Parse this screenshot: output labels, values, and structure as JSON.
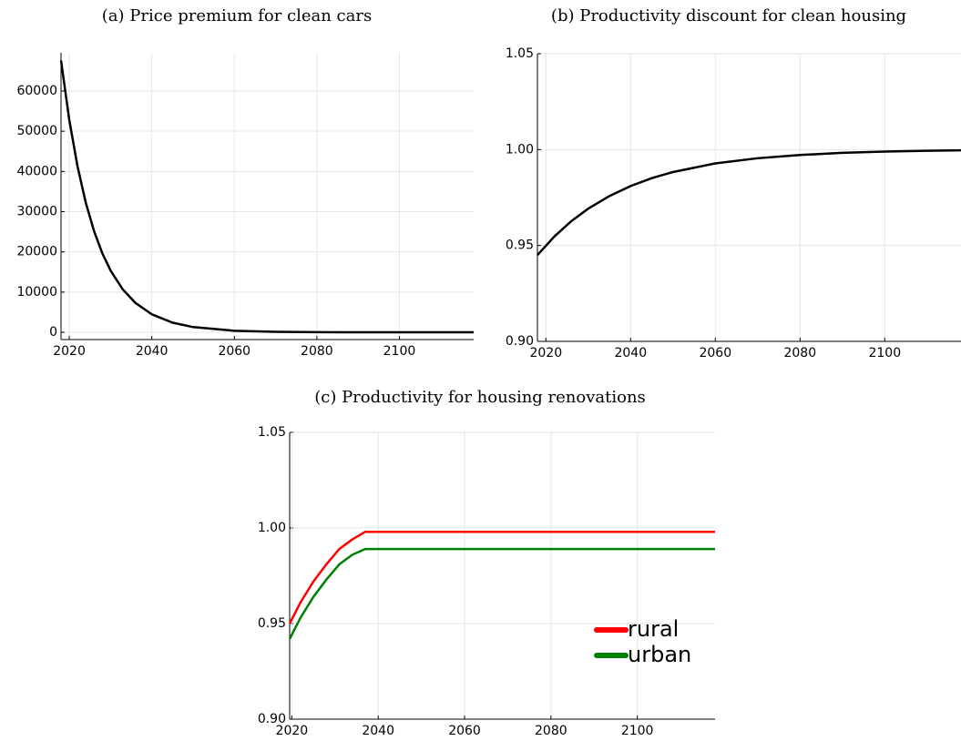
{
  "chart_data": [
    {
      "type": "line",
      "title": "(a) Price premium for clean cars",
      "x": [
        2018,
        2020,
        2022,
        2024,
        2026,
        2028,
        2030,
        2033,
        2036,
        2040,
        2045,
        2050,
        2060,
        2070,
        2080,
        2090,
        2100,
        2110,
        2118
      ],
      "values": [
        67600,
        52800,
        41240,
        32220,
        25170,
        19660,
        15360,
        10620,
        7330,
        4480,
        2410,
        1300,
        379,
        110,
        32,
        9,
        3,
        1,
        0
      ],
      "color": "#000000",
      "xlim": [
        2018,
        2118
      ],
      "xticks": [
        2020,
        2040,
        2060,
        2080,
        2100
      ],
      "ylim": [
        -1800,
        69500
      ],
      "yticks": [
        0,
        10000,
        20000,
        30000,
        40000,
        50000,
        60000
      ],
      "grid": true
    },
    {
      "type": "line",
      "title": "(b) Productivity discount for clean housing",
      "x": [
        2018,
        2022,
        2026,
        2030,
        2035,
        2040,
        2045,
        2050,
        2060,
        2070,
        2080,
        2090,
        2100,
        2110,
        2118
      ],
      "values": [
        0.945,
        0.9547,
        0.9627,
        0.9692,
        0.9758,
        0.981,
        0.9851,
        0.9883,
        0.9928,
        0.9955,
        0.9972,
        0.9983,
        0.999,
        0.9994,
        0.9996
      ],
      "color": "#000000",
      "xlim": [
        2018,
        2118
      ],
      "xticks": [
        2020,
        2040,
        2060,
        2080,
        2100
      ],
      "ylim": [
        0.9,
        1.05
      ],
      "yticks": [
        {
          "value": 0.9,
          "label": "0.90"
        },
        0.95,
        {
          "value": 1,
          "label": "1.00"
        },
        1.05
      ],
      "grid": true
    },
    {
      "type": "line",
      "title": "(c) Productivity for housing renovations",
      "x": [
        2019.5,
        2022,
        2025,
        2028,
        2031,
        2034,
        2037,
        2118
      ],
      "series": [
        {
          "name": "rural",
          "color": "#ff0000",
          "values": [
            0.95,
            0.961,
            0.972,
            0.981,
            0.989,
            0.994,
            0.998,
            0.998
          ]
        },
        {
          "name": "urban",
          "color": "#008000",
          "values": [
            0.942,
            0.953,
            0.964,
            0.973,
            0.981,
            0.986,
            0.989,
            0.989
          ]
        }
      ],
      "xlim": [
        2019.5,
        2118
      ],
      "xticks": [
        2020,
        2040,
        2060,
        2080,
        2100
      ],
      "ylim": [
        0.9,
        1.05
      ],
      "yticks": [
        {
          "value": 0.9,
          "label": "0.90"
        },
        0.95,
        {
          "value": 1,
          "label": "1.00"
        },
        1.05
      ],
      "grid": true,
      "legend": "lower right"
    }
  ]
}
